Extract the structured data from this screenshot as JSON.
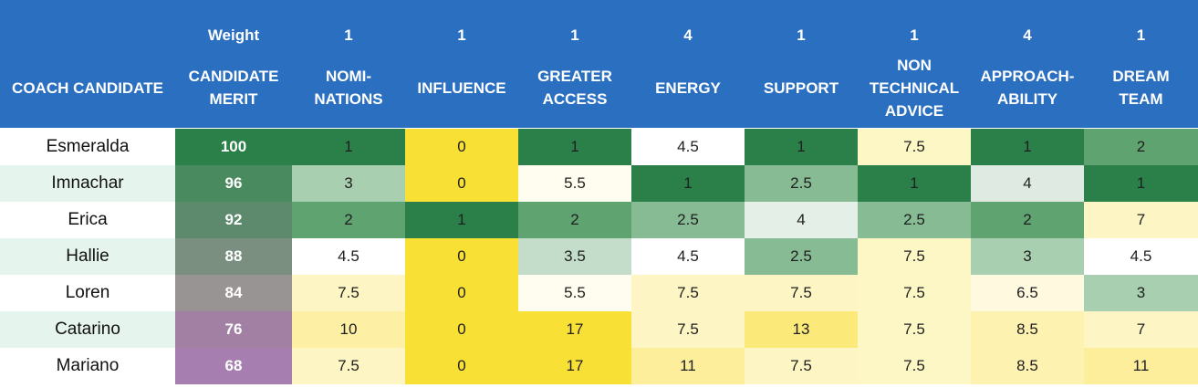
{
  "weights": {
    "label": "Weight",
    "values": [
      "1",
      "1",
      "1",
      "4",
      "1",
      "1",
      "4",
      "1"
    ]
  },
  "columns": [
    {
      "key": "coach",
      "lines": [
        "COACH CANDIDATE"
      ]
    },
    {
      "key": "merit",
      "lines": [
        "CANDIDATE",
        "MERIT"
      ]
    },
    {
      "key": "nominations",
      "lines": [
        "NOMI-",
        "NATIONS"
      ]
    },
    {
      "key": "influence",
      "lines": [
        "INFLUENCE"
      ]
    },
    {
      "key": "greater_access",
      "lines": [
        "GREATER",
        "ACCESS"
      ]
    },
    {
      "key": "energy",
      "lines": [
        "ENERGY"
      ]
    },
    {
      "key": "support",
      "lines": [
        "SUPPORT"
      ]
    },
    {
      "key": "non_technical_advice",
      "lines": [
        "NON",
        "TECHNICAL",
        "ADVICE"
      ]
    },
    {
      "key": "approachability",
      "lines": [
        "APPROACH-",
        "ABILITY"
      ]
    },
    {
      "key": "dream_team",
      "lines": [
        "DREAM",
        "TEAM"
      ]
    }
  ],
  "rows": [
    {
      "name": "Esmeralda",
      "merit": "100",
      "values": [
        "1",
        "0",
        "1",
        "4.5",
        "1",
        "7.5",
        "1",
        "2"
      ],
      "name_bg": "#ffffff",
      "merit_bg": "#2a8048",
      "colors": [
        "#2a8048",
        "#f9e034",
        "#2a8048",
        "#ffffff",
        "#2a8048",
        "#fdf7c6",
        "#2a8048",
        "#5fa470"
      ]
    },
    {
      "name": "Imnachar",
      "merit": "96",
      "values": [
        "3",
        "0",
        "5.5",
        "1",
        "2.5",
        "1",
        "4",
        "1"
      ],
      "name_bg": "#e6f4ee",
      "merit_bg": "#4a8a5f",
      "colors": [
        "#a8cfb0",
        "#f9e034",
        "#fffdf0",
        "#2a8048",
        "#86bb93",
        "#2a8048",
        "#dfeae3",
        "#2a8048"
      ]
    },
    {
      "name": "Erica",
      "merit": "92",
      "values": [
        "2",
        "1",
        "2",
        "2.5",
        "4",
        "2.5",
        "2",
        "7"
      ],
      "name_bg": "#ffffff",
      "merit_bg": "#5d8a6c",
      "colors": [
        "#5fa470",
        "#2a8048",
        "#5fa470",
        "#86bb93",
        "#e3efe7",
        "#86bb93",
        "#5fa470",
        "#fdf6c4"
      ]
    },
    {
      "name": "Hallie",
      "merit": "88",
      "values": [
        "4.5",
        "0",
        "3.5",
        "4.5",
        "2.5",
        "7.5",
        "3",
        "4.5"
      ],
      "name_bg": "#e6f4ee",
      "merit_bg": "#7a8f80",
      "colors": [
        "#ffffff",
        "#f9e034",
        "#c3ddca",
        "#ffffff",
        "#86bb93",
        "#fdf7c6",
        "#a8cfb0",
        "#ffffff"
      ]
    },
    {
      "name": "Loren",
      "merit": "84",
      "values": [
        "7.5",
        "0",
        "5.5",
        "7.5",
        "7.5",
        "7.5",
        "6.5",
        "3"
      ],
      "name_bg": "#ffffff",
      "merit_bg": "#999494",
      "colors": [
        "#fdf6c4",
        "#f9e034",
        "#fffdf0",
        "#fdf6c4",
        "#fdf6c4",
        "#fdf7c6",
        "#fef9df",
        "#a8cfb0"
      ]
    },
    {
      "name": "Catarino",
      "merit": "76",
      "values": [
        "10",
        "0",
        "17",
        "7.5",
        "13",
        "7.5",
        "8.5",
        "7"
      ],
      "name_bg": "#e6f4ee",
      "merit_bg": "#a180a4",
      "colors": [
        "#fdf0a4",
        "#f9e034",
        "#f9e034",
        "#fdf6c4",
        "#fbe97a",
        "#fdf7c6",
        "#fdf2b0",
        "#fdf6c4"
      ]
    },
    {
      "name": "Mariano",
      "merit": "68",
      "values": [
        "7.5",
        "0",
        "17",
        "11",
        "7.5",
        "7.5",
        "8.5",
        "11"
      ],
      "name_bg": "#ffffff",
      "merit_bg": "#a67eb0",
      "colors": [
        "#fdf6c4",
        "#f9e034",
        "#f9e034",
        "#fdee9c",
        "#fdf6c4",
        "#fdf7c6",
        "#fdf2b0",
        "#fdee9c"
      ]
    }
  ]
}
